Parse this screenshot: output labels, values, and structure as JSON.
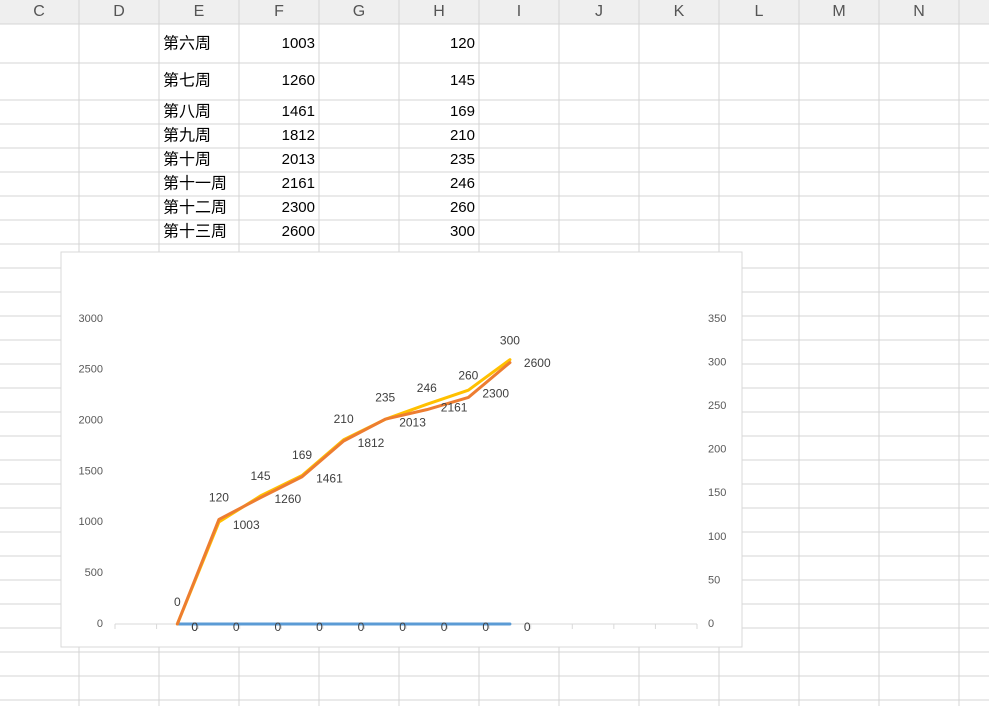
{
  "spreadsheet": {
    "columns": [
      "C",
      "D",
      "E",
      "F",
      "G",
      "H",
      "I",
      "J",
      "K",
      "L",
      "M",
      "N"
    ],
    "rows": [
      [
        "第六周",
        1003,
        120
      ],
      [
        "第七周",
        1260,
        145
      ],
      [
        "第八周",
        1461,
        169
      ],
      [
        "第九周",
        1812,
        210
      ],
      [
        "第十周",
        2013,
        235
      ],
      [
        "第十一周",
        2161,
        246
      ],
      [
        "第十二周",
        2300,
        260
      ],
      [
        "第十三周",
        2600,
        300
      ]
    ]
  },
  "chart_data": {
    "type": "line",
    "categories": [
      null,
      null,
      null,
      null,
      null,
      null,
      null,
      null,
      null,
      null,
      null,
      null,
      null,
      null
    ],
    "series": [
      {
        "color": "#5b9bd5",
        "values": [
          null,
          0,
          0,
          0,
          0,
          0,
          0,
          0,
          0,
          0,
          null,
          null,
          null,
          null
        ]
      },
      {
        "color": "#ffc000",
        "values": [
          null,
          0,
          1003,
          1260,
          1461,
          1812,
          2013,
          2161,
          2300,
          2600,
          null,
          null,
          null,
          null
        ]
      },
      {
        "color": "#ed7d31",
        "axis": "y2",
        "values": [
          null,
          0,
          120,
          145,
          169,
          210,
          235,
          246,
          260,
          300,
          null,
          null,
          null,
          null
        ]
      }
    ],
    "ylim": [
      0,
      3000
    ],
    "yticks": [
      0,
      500,
      1000,
      1500,
      2000,
      2500,
      3000
    ],
    "y2lim": [
      0,
      350
    ],
    "y2ticks": [
      0,
      50,
      100,
      150,
      200,
      250,
      300,
      350
    ],
    "data_labels": true,
    "grid": false
  }
}
